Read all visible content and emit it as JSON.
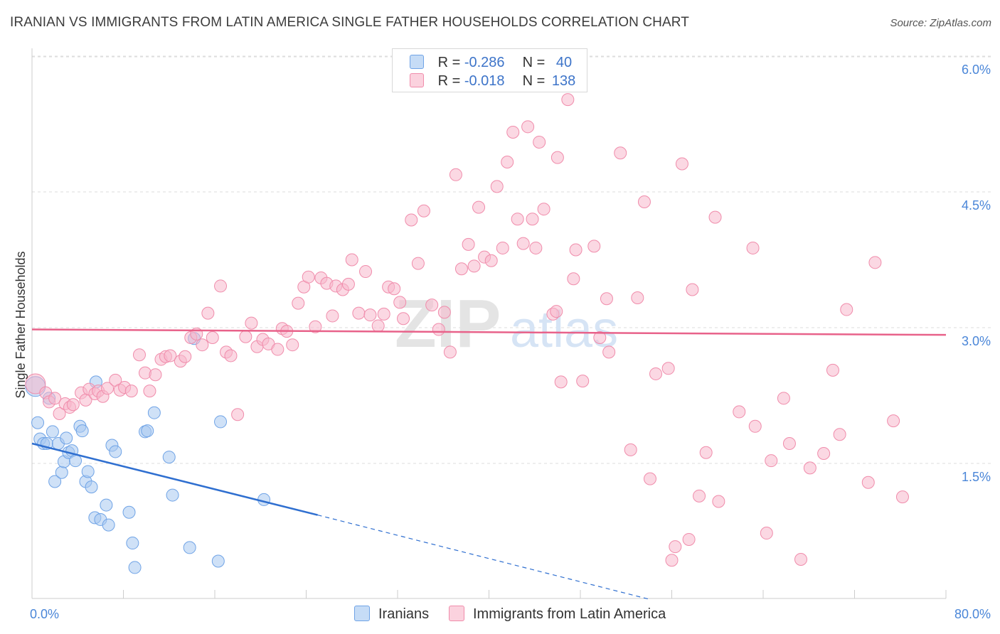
{
  "header": {
    "title": "IRANIAN VS IMMIGRANTS FROM LATIN AMERICA SINGLE FATHER HOUSEHOLDS CORRELATION CHART",
    "source": "Source: ZipAtlas.com"
  },
  "watermark": {
    "zip": "ZIP",
    "atlas": "atlas"
  },
  "legend": {
    "rows": [
      {
        "r_label": "R =",
        "r_value": "-0.286",
        "n_label": "N =",
        "n_value": "40",
        "color": "#a8c8f0"
      },
      {
        "r_label": "R =",
        "r_value": "-0.018",
        "n_label": "N =",
        "n_value": "138",
        "color": "#f7b8cc"
      }
    ]
  },
  "bottom_legend": [
    "Iranians",
    "Immigrants from Latin America"
  ],
  "chart_data": {
    "type": "scatter",
    "title": "IRANIAN VS IMMIGRANTS FROM LATIN AMERICA SINGLE FATHER HOUSEHOLDS CORRELATION CHART",
    "xlabel": "",
    "ylabel": "Single Father Households",
    "xlim": [
      0,
      80
    ],
    "ylim": [
      0,
      6.2
    ],
    "x_tick_labels": [
      "0.0%",
      "80.0%"
    ],
    "y_ticks": [
      1.5,
      3.0,
      4.5,
      6.0
    ],
    "y_tick_labels": [
      "1.5%",
      "3.0%",
      "4.5%",
      "6.0%"
    ],
    "grid": true,
    "legend_position": "top-center",
    "series": [
      {
        "name": "Iranians",
        "color": "#6fa3e6",
        "fill": "#a8c8f0",
        "trend": {
          "x0": 0,
          "y0": 1.72,
          "x1": 25,
          "y1": 0.93,
          "dashed_to_x": 54,
          "dashed_to_y": 0.0,
          "color": "#2f6fd0"
        },
        "points": [
          [
            0.3,
            2.35
          ],
          [
            0.5,
            1.95
          ],
          [
            0.7,
            1.77
          ],
          [
            1.0,
            1.72
          ],
          [
            1.3,
            1.72
          ],
          [
            1.5,
            2.22
          ],
          [
            1.8,
            1.85
          ],
          [
            2.0,
            1.3
          ],
          [
            2.3,
            1.72
          ],
          [
            2.6,
            1.4
          ],
          [
            2.8,
            1.52
          ],
          [
            3.0,
            1.78
          ],
          [
            3.2,
            1.62
          ],
          [
            3.5,
            1.64
          ],
          [
            3.8,
            1.53
          ],
          [
            4.2,
            1.91
          ],
          [
            4.4,
            1.86
          ],
          [
            4.7,
            1.3
          ],
          [
            4.9,
            1.41
          ],
          [
            5.2,
            1.24
          ],
          [
            5.5,
            0.9
          ],
          [
            5.6,
            2.4
          ],
          [
            6.0,
            0.88
          ],
          [
            6.5,
            1.04
          ],
          [
            6.7,
            0.82
          ],
          [
            7.0,
            1.7
          ],
          [
            7.3,
            1.63
          ],
          [
            8.5,
            0.96
          ],
          [
            8.8,
            0.62
          ],
          [
            9.0,
            0.35
          ],
          [
            9.9,
            1.85
          ],
          [
            10.1,
            1.86
          ],
          [
            10.7,
            2.06
          ],
          [
            12.0,
            1.57
          ],
          [
            12.3,
            1.15
          ],
          [
            13.8,
            0.57
          ],
          [
            14.2,
            2.88
          ],
          [
            16.3,
            0.42
          ],
          [
            16.5,
            1.96
          ],
          [
            20.3,
            1.1
          ]
        ]
      },
      {
        "name": "Immigrants from Latin America",
        "color": "#f08cab",
        "fill": "#f7b8cc",
        "trend": {
          "x0": 0,
          "y0": 2.98,
          "x1": 80,
          "y1": 2.92,
          "color": "#e8628a"
        },
        "points": [
          [
            0.3,
            2.38
          ],
          [
            1.2,
            2.28
          ],
          [
            1.5,
            2.18
          ],
          [
            2.0,
            2.22
          ],
          [
            2.4,
            2.05
          ],
          [
            2.9,
            2.16
          ],
          [
            3.3,
            2.12
          ],
          [
            3.6,
            2.15
          ],
          [
            4.3,
            2.28
          ],
          [
            4.7,
            2.2
          ],
          [
            5.0,
            2.32
          ],
          [
            5.5,
            2.27
          ],
          [
            5.8,
            2.3
          ],
          [
            6.2,
            2.24
          ],
          [
            6.6,
            2.33
          ],
          [
            7.3,
            2.42
          ],
          [
            7.7,
            2.31
          ],
          [
            8.1,
            2.34
          ],
          [
            8.7,
            2.3
          ],
          [
            9.4,
            2.7
          ],
          [
            9.9,
            2.5
          ],
          [
            10.3,
            2.3
          ],
          [
            10.8,
            2.48
          ],
          [
            11.3,
            2.65
          ],
          [
            11.7,
            2.68
          ],
          [
            12.1,
            2.69
          ],
          [
            13.0,
            2.63
          ],
          [
            13.4,
            2.68
          ],
          [
            13.9,
            2.89
          ],
          [
            14.4,
            2.93
          ],
          [
            14.9,
            2.81
          ],
          [
            15.4,
            3.16
          ],
          [
            15.8,
            2.89
          ],
          [
            16.5,
            3.46
          ],
          [
            17.0,
            2.73
          ],
          [
            17.4,
            2.69
          ],
          [
            18.0,
            2.04
          ],
          [
            18.7,
            2.9
          ],
          [
            19.2,
            3.05
          ],
          [
            19.7,
            2.79
          ],
          [
            20.2,
            2.87
          ],
          [
            20.7,
            2.82
          ],
          [
            21.5,
            2.76
          ],
          [
            21.9,
            2.99
          ],
          [
            22.3,
            2.96
          ],
          [
            22.8,
            2.81
          ],
          [
            23.3,
            3.27
          ],
          [
            23.8,
            3.45
          ],
          [
            24.2,
            3.56
          ],
          [
            24.8,
            3.01
          ],
          [
            25.3,
            3.55
          ],
          [
            25.8,
            3.49
          ],
          [
            26.3,
            3.13
          ],
          [
            26.6,
            3.46
          ],
          [
            27.2,
            3.42
          ],
          [
            27.7,
            3.48
          ],
          [
            28.0,
            3.75
          ],
          [
            28.6,
            3.16
          ],
          [
            29.2,
            3.62
          ],
          [
            29.6,
            3.14
          ],
          [
            30.3,
            3.02
          ],
          [
            30.8,
            3.15
          ],
          [
            31.2,
            3.45
          ],
          [
            31.7,
            3.43
          ],
          [
            32.2,
            3.28
          ],
          [
            32.5,
            3.1
          ],
          [
            33.2,
            4.19
          ],
          [
            33.8,
            3.71
          ],
          [
            34.3,
            4.29
          ],
          [
            35.0,
            3.25
          ],
          [
            35.6,
            2.98
          ],
          [
            36.1,
            3.17
          ],
          [
            36.6,
            2.73
          ],
          [
            37.1,
            4.69
          ],
          [
            37.6,
            3.65
          ],
          [
            38.2,
            3.92
          ],
          [
            38.7,
            3.68
          ],
          [
            39.1,
            4.33
          ],
          [
            39.6,
            3.78
          ],
          [
            40.2,
            3.74
          ],
          [
            40.7,
            4.56
          ],
          [
            41.2,
            3.88
          ],
          [
            41.6,
            4.83
          ],
          [
            42.1,
            5.16
          ],
          [
            42.5,
            4.2
          ],
          [
            43.0,
            3.93
          ],
          [
            43.4,
            5.22
          ],
          [
            43.8,
            4.2
          ],
          [
            44.1,
            3.88
          ],
          [
            44.4,
            5.05
          ],
          [
            44.8,
            4.31
          ],
          [
            45.6,
            3.15
          ],
          [
            45.9,
            3.18
          ],
          [
            46.3,
            2.4
          ],
          [
            46.9,
            5.52
          ],
          [
            47.4,
            3.54
          ],
          [
            47.6,
            3.86
          ],
          [
            48.2,
            2.41
          ],
          [
            49.2,
            3.9
          ],
          [
            49.7,
            2.89
          ],
          [
            50.3,
            3.32
          ],
          [
            50.5,
            2.73
          ],
          [
            51.5,
            4.93
          ],
          [
            52.4,
            1.65
          ],
          [
            53.0,
            3.33
          ],
          [
            53.6,
            4.39
          ],
          [
            54.1,
            1.33
          ],
          [
            54.6,
            2.49
          ],
          [
            55.7,
            2.55
          ],
          [
            56.3,
            0.58
          ],
          [
            56.9,
            4.81
          ],
          [
            57.8,
            3.42
          ],
          [
            58.4,
            1.14
          ],
          [
            59.0,
            1.62
          ],
          [
            60.1,
            1.08
          ],
          [
            61.9,
            2.07
          ],
          [
            63.3,
            1.91
          ],
          [
            64.3,
            0.73
          ],
          [
            64.7,
            1.53
          ],
          [
            65.8,
            2.22
          ],
          [
            66.3,
            1.72
          ],
          [
            67.3,
            0.44
          ],
          [
            68.1,
            1.45
          ],
          [
            69.3,
            1.61
          ],
          [
            70.1,
            2.53
          ],
          [
            70.7,
            1.82
          ],
          [
            71.3,
            3.2
          ],
          [
            73.2,
            1.29
          ],
          [
            75.4,
            1.97
          ],
          [
            76.2,
            1.13
          ],
          [
            73.8,
            3.72
          ],
          [
            63.1,
            3.88
          ],
          [
            59.8,
            4.22
          ],
          [
            57.5,
            0.66
          ],
          [
            56.0,
            0.43
          ],
          [
            46.0,
            4.88
          ]
        ]
      }
    ]
  }
}
